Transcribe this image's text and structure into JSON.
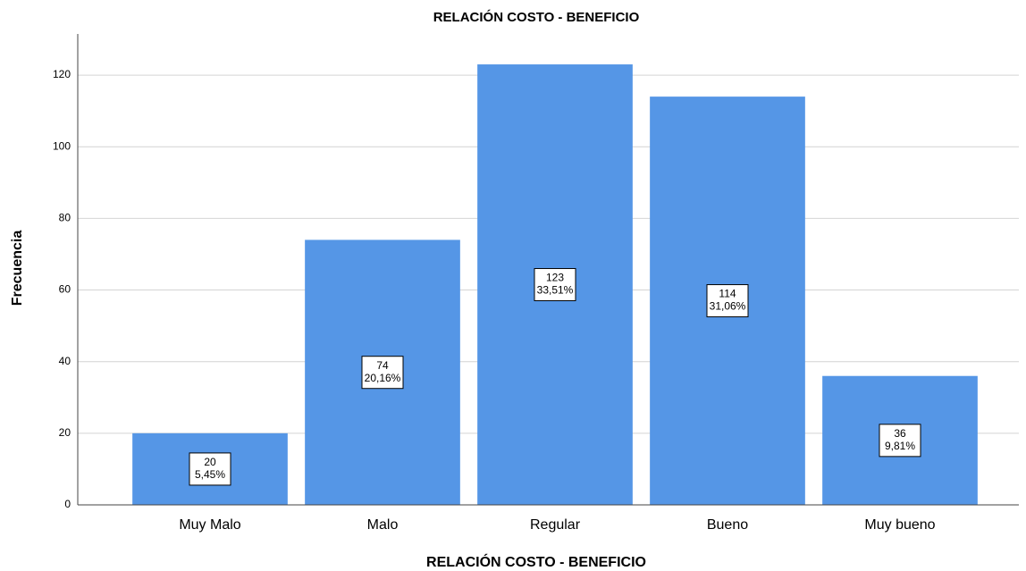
{
  "chart_data": {
    "type": "bar",
    "title": "RELACIÓN COSTO - BENEFICIO",
    "x_label": "RELACIÓN COSTO - BENEFICIO",
    "y_label": "Frecuencia",
    "categories": [
      "Muy Malo",
      "Malo",
      "Regular",
      "Bueno",
      "Muy bueno"
    ],
    "values": [
      20,
      74,
      123,
      114,
      36
    ],
    "percent_labels": [
      "5,45%",
      "20,16%",
      "33,51%",
      "31,06%",
      "9,81%"
    ],
    "color": "#5596e6",
    "ylim": [
      0,
      130
    ],
    "yticks": [
      0,
      20,
      40,
      60,
      80,
      100,
      120
    ],
    "grid": true
  }
}
